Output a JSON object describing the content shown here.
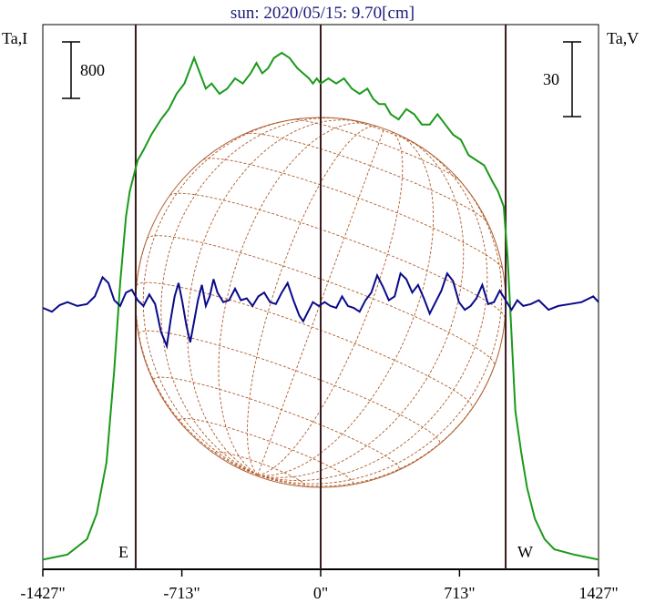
{
  "chart_data": {
    "type": "line",
    "title": "sun: 2020/05/15: 9.70[cm]",
    "ylabel_left": "Ta,I",
    "ylabel_right": "Ta,V",
    "scale_left": "800",
    "scale_right": "30",
    "limb_left": "E",
    "limb_right": "W",
    "xlim": [
      -1427,
      1427
    ],
    "x_ticks": [
      {
        "label": "-1427\"",
        "value": -1427
      },
      {
        "label": "-713\"",
        "value": -713
      },
      {
        "label": "0\"",
        "value": 0
      },
      {
        "label": "713\"",
        "value": 713
      },
      {
        "label": "1427\"",
        "value": 1427
      }
    ],
    "solar_radius_arcsec": 950,
    "colors": {
      "stokes_I": "#1a9a1a",
      "stokes_V": "#0a0a8a",
      "disk": "#b05a2a",
      "axis": "#000000",
      "title": "#1a1a7a"
    },
    "series": [
      {
        "key": "stokes_I",
        "x": [
          -1427,
          -1300,
          -1200,
          -1150,
          -1100,
          -1060,
          -1030,
          -1000,
          -980,
          -960,
          -940,
          -910,
          -870,
          -820,
          -780,
          -740,
          -700,
          -670,
          -650,
          -620,
          -590,
          -560,
          -520,
          -480,
          -440,
          -400,
          -360,
          -330,
          -300,
          -270,
          -240,
          -200,
          -160,
          -120,
          -90,
          -60,
          -40,
          -20,
          0,
          40,
          80,
          120,
          160,
          200,
          240,
          270,
          300,
          330,
          360,
          400,
          440,
          480,
          520,
          560,
          600,
          640,
          680,
          720,
          760,
          800,
          840,
          880,
          910,
          940,
          960,
          980,
          1000,
          1030,
          1060,
          1100,
          1150,
          1200,
          1300,
          1427
        ],
        "y": [
          0.01,
          0.02,
          0.05,
          0.1,
          0.2,
          0.38,
          0.55,
          0.68,
          0.73,
          0.76,
          0.79,
          0.81,
          0.84,
          0.87,
          0.89,
          0.92,
          0.94,
          0.97,
          0.99,
          0.96,
          0.93,
          0.94,
          0.92,
          0.93,
          0.95,
          0.94,
          0.96,
          0.98,
          0.96,
          0.97,
          0.99,
          1.0,
          0.99,
          0.97,
          0.96,
          0.95,
          0.94,
          0.95,
          0.94,
          0.95,
          0.94,
          0.95,
          0.93,
          0.92,
          0.93,
          0.91,
          0.9,
          0.9,
          0.88,
          0.87,
          0.89,
          0.88,
          0.86,
          0.86,
          0.88,
          0.86,
          0.84,
          0.83,
          0.8,
          0.79,
          0.78,
          0.75,
          0.73,
          0.7,
          0.6,
          0.45,
          0.3,
          0.22,
          0.15,
          0.09,
          0.05,
          0.03,
          0.02,
          0.01
        ]
      },
      {
        "key": "stokes_V",
        "x": [
          -1427,
          -1380,
          -1340,
          -1300,
          -1250,
          -1200,
          -1160,
          -1120,
          -1090,
          -1060,
          -1030,
          -1000,
          -970,
          -940,
          -910,
          -880,
          -850,
          -820,
          -790,
          -770,
          -750,
          -730,
          -710,
          -690,
          -670,
          -650,
          -630,
          -610,
          -590,
          -570,
          -550,
          -530,
          -500,
          -470,
          -440,
          -410,
          -380,
          -350,
          -320,
          -290,
          -260,
          -230,
          -200,
          -170,
          -140,
          -110,
          -90,
          -70,
          -40,
          -10,
          20,
          50,
          80,
          110,
          140,
          170,
          200,
          230,
          260,
          290,
          320,
          350,
          380,
          410,
          440,
          470,
          500,
          530,
          560,
          590,
          620,
          650,
          680,
          710,
          740,
          770,
          800,
          830,
          860,
          890,
          920,
          950,
          980,
          1010,
          1040,
          1080,
          1120,
          1170,
          1220,
          1280,
          1340,
          1400,
          1427
        ],
        "y": [
          0.0,
          -0.4,
          0.3,
          0.6,
          0.2,
          0.4,
          1.2,
          3.2,
          2.6,
          0.8,
          0.2,
          1.6,
          1.9,
          0.8,
          0.2,
          1.4,
          0.4,
          -2.5,
          -4.0,
          -1.2,
          1.2,
          2.6,
          0.6,
          -1.8,
          -3.6,
          -1.4,
          0.8,
          2.4,
          0.2,
          1.2,
          3.0,
          1.6,
          0.6,
          0.8,
          2.0,
          0.8,
          1.0,
          0.2,
          1.2,
          1.6,
          0.6,
          0.4,
          1.6,
          2.6,
          0.8,
          -0.8,
          -1.4,
          -0.6,
          0.6,
          0.2,
          0.6,
          0.2,
          0.0,
          1.2,
          0.2,
          0.0,
          -0.4,
          0.8,
          1.6,
          3.4,
          2.2,
          0.8,
          1.2,
          3.6,
          3.0,
          1.6,
          2.4,
          1.0,
          -0.6,
          0.6,
          1.8,
          3.6,
          2.8,
          0.6,
          -0.2,
          0.2,
          1.0,
          2.4,
          0.4,
          0.6,
          1.8,
          0.8,
          -0.2,
          0.8,
          0.2,
          0.4,
          0.8,
          -0.2,
          0.2,
          0.4,
          0.6,
          1.2,
          0.6
        ]
      }
    ]
  }
}
